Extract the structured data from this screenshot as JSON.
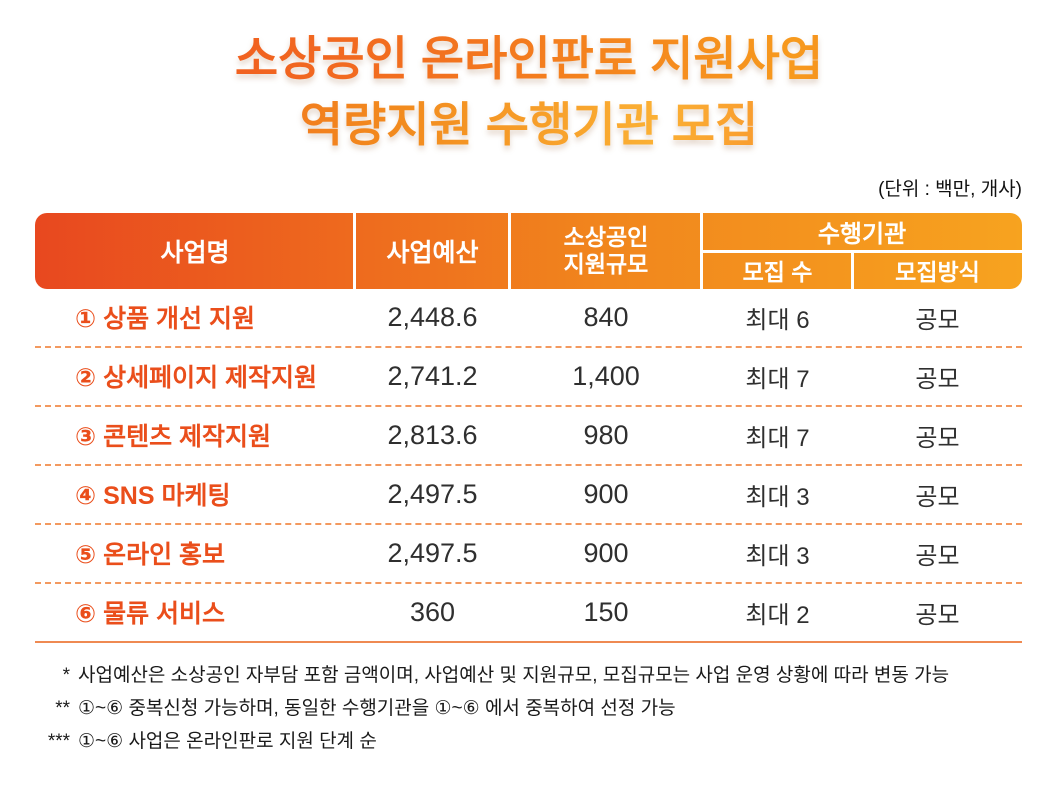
{
  "title": {
    "line1": "소상공인 온라인판로 지원사업",
    "line2": "역량지원 수행기관 모집"
  },
  "unit_note": "(단위 : 백만, 개사)",
  "table": {
    "headers": {
      "business_name": "사업명",
      "budget": "사업예산",
      "support_scale_line1": "소상공인",
      "support_scale_line2": "지원규모",
      "agency_group": "수행기관",
      "recruit_count": "모집 수",
      "recruit_method": "모집방식"
    },
    "rows": [
      {
        "name": "① 상품 개선 지원",
        "budget": "2,448.6",
        "scale": "840",
        "count": "최대 6",
        "method": "공모"
      },
      {
        "name": "② 상세페이지 제작지원",
        "budget": "2,741.2",
        "scale": "1,400",
        "count": "최대 7",
        "method": "공모"
      },
      {
        "name": "③ 콘텐츠 제작지원",
        "budget": "2,813.6",
        "scale": "980",
        "count": "최대 7",
        "method": "공모"
      },
      {
        "name": "④ SNS 마케팅",
        "budget": "2,497.5",
        "scale": "900",
        "count": "최대 3",
        "method": "공모"
      },
      {
        "name": "⑤ 온라인 홍보",
        "budget": "2,497.5",
        "scale": "900",
        "count": "최대 3",
        "method": "공모"
      },
      {
        "name": "⑥ 물류 서비스",
        "budget": "360",
        "scale": "150",
        "count": "최대 2",
        "method": "공모"
      }
    ]
  },
  "footnotes": [
    {
      "marker": "*",
      "text": "사업예산은 소상공인 자부담 포함 금액이며, 사업예산 및 지원규모, 모집규모는 사업 운영 상황에 따라 변동 가능"
    },
    {
      "marker": "**",
      "text": "①~⑥ 중복신청 가능하며, 동일한 수행기관을 ①~⑥ 에서 중복하여 선정 가능"
    },
    {
      "marker": "***",
      "text": "①~⑥ 사업은 온라인판로 지원 단계 순"
    }
  ],
  "colors": {
    "accent_orange": "#ea4e1b",
    "header_gradient_start": "#e8481f",
    "header_gradient_end": "#f7a31f",
    "row_divider": "#f3995f",
    "body_text": "#2f2f2f"
  }
}
